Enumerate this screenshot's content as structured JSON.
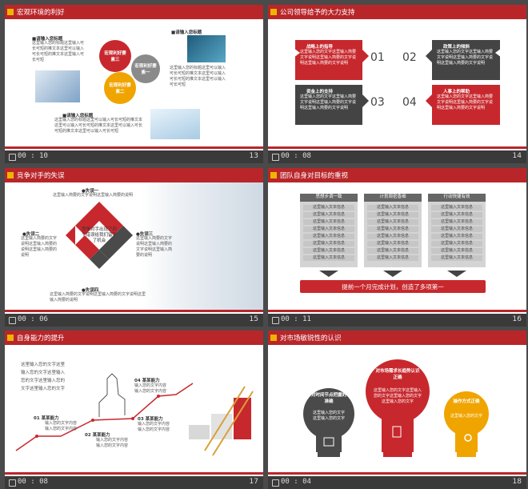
{
  "slides": [
    {
      "title": "宏观环境的利好",
      "time": "00 : 10",
      "page": "13",
      "heading_a": "■请输入您标题",
      "body_a": "这里输入您的标题这里输入可长可短的推文本这里可以输入可长可短的推文本这里输入可长可短",
      "heading_b": "■请输入您标题",
      "body_b": "这里输入您的标题这里可以输入可长可短的推文本这里可以输入可长可短的推文本这里可以输入可长可短",
      "heading_c": "■请输入您标题",
      "body_c": "这里输入您的标题这里可以输入可长可短的推文本这里可以输入可长可短的推文本这里可以输入可长可短的推文本这里可以输入可长可短",
      "bubble_1": "宏观利好要素三",
      "bubble_2": "宏观利好要素一",
      "bubble_3": "宏观利好要素二"
    },
    {
      "title": "公司领导给予的大力支持",
      "time": "00 : 08",
      "page": "14",
      "items": [
        {
          "title": "战略上的指导",
          "num": "01",
          "text": "这里输入您的文字这里输入简要文字说明这里输入简要的文字说明这里输入简要的文字说明"
        },
        {
          "title": "政策上的倾斜",
          "num": "02",
          "text": "这里输入您的文字这里输入简要文字说明这里输入简要的文字说明这里输入简要的文字说明"
        },
        {
          "title": "资金上的支持",
          "num": "03",
          "text": "这里输入您的文字这里输入简要文字说明这里输入简要的文字说明这里输入简要的文字说明"
        },
        {
          "title": "人事上的帮助",
          "num": "04",
          "text": "这里输入您的文字这里输入简要文字说明这里输入简要的文字说明这里输入简要的文字说明"
        }
      ]
    },
    {
      "title": "竞争对手的失误",
      "time": "00 : 06",
      "page": "15",
      "center": "竞争对手出现了四个错误给我们留下了机会",
      "m1_t": "●失误一",
      "m1_b": "这里输入简要的文字说明这里输入简要的说明",
      "m2_t": "●失误二",
      "m2_b": "这里输入简要的文字说明这里输入简要的说明这里输入简要的说明",
      "m3_t": "●失误三",
      "m3_b": "这里输入简要的文字说明这里输入简要的文字说明这里输入简要的说明",
      "m4_t": "●失误四",
      "m4_b": "这里输入简要的文字说明这里输入简要的文字说明这里输入简要的说明"
    },
    {
      "title": "团队自身对目标的重视",
      "time": "00 : 11",
      "page": "16",
      "cols": [
        "思想步调一致",
        "计划周密香细",
        "行动快捷有效"
      ],
      "col_line": "这里输入文本信息",
      "banner": "提前一个月完成计划，创造了多项第一"
    },
    {
      "title": "自身能力的提升",
      "time": "00 : 08",
      "page": "17",
      "intro": "这里输入您的文字这里输入您的文字这里输入您的文字这里输入您的文字这里输入您的文字",
      "s1_t": "01 某某能力",
      "s1_b": "输入您的文字内容输入您的文字内容",
      "s2_t": "02 某某能力",
      "s2_b": "输入您的文字内容输入您的文字内容",
      "s3_t": "03 某某能力",
      "s3_b": "输入您的文字内容输入您的文字内容",
      "s4_t": "04 某某能力",
      "s4_b": "输入您的文字内容输入您的文字内容"
    },
    {
      "title": "对市场敏锐性的认识",
      "time": "00 : 04",
      "page": "18",
      "b1_t": "对时间节点把握的准确",
      "b1_b": "这里输入您的文字这里输入您的文字",
      "b2_t": "对市场需求长趋势认识正确",
      "b2_b": "这里输入您的文字这里输入您的文字这里输入您的文字这里输入您的文字",
      "b3_t": "操作方式正确",
      "b3_b": "这里输入您的文字"
    }
  ]
}
